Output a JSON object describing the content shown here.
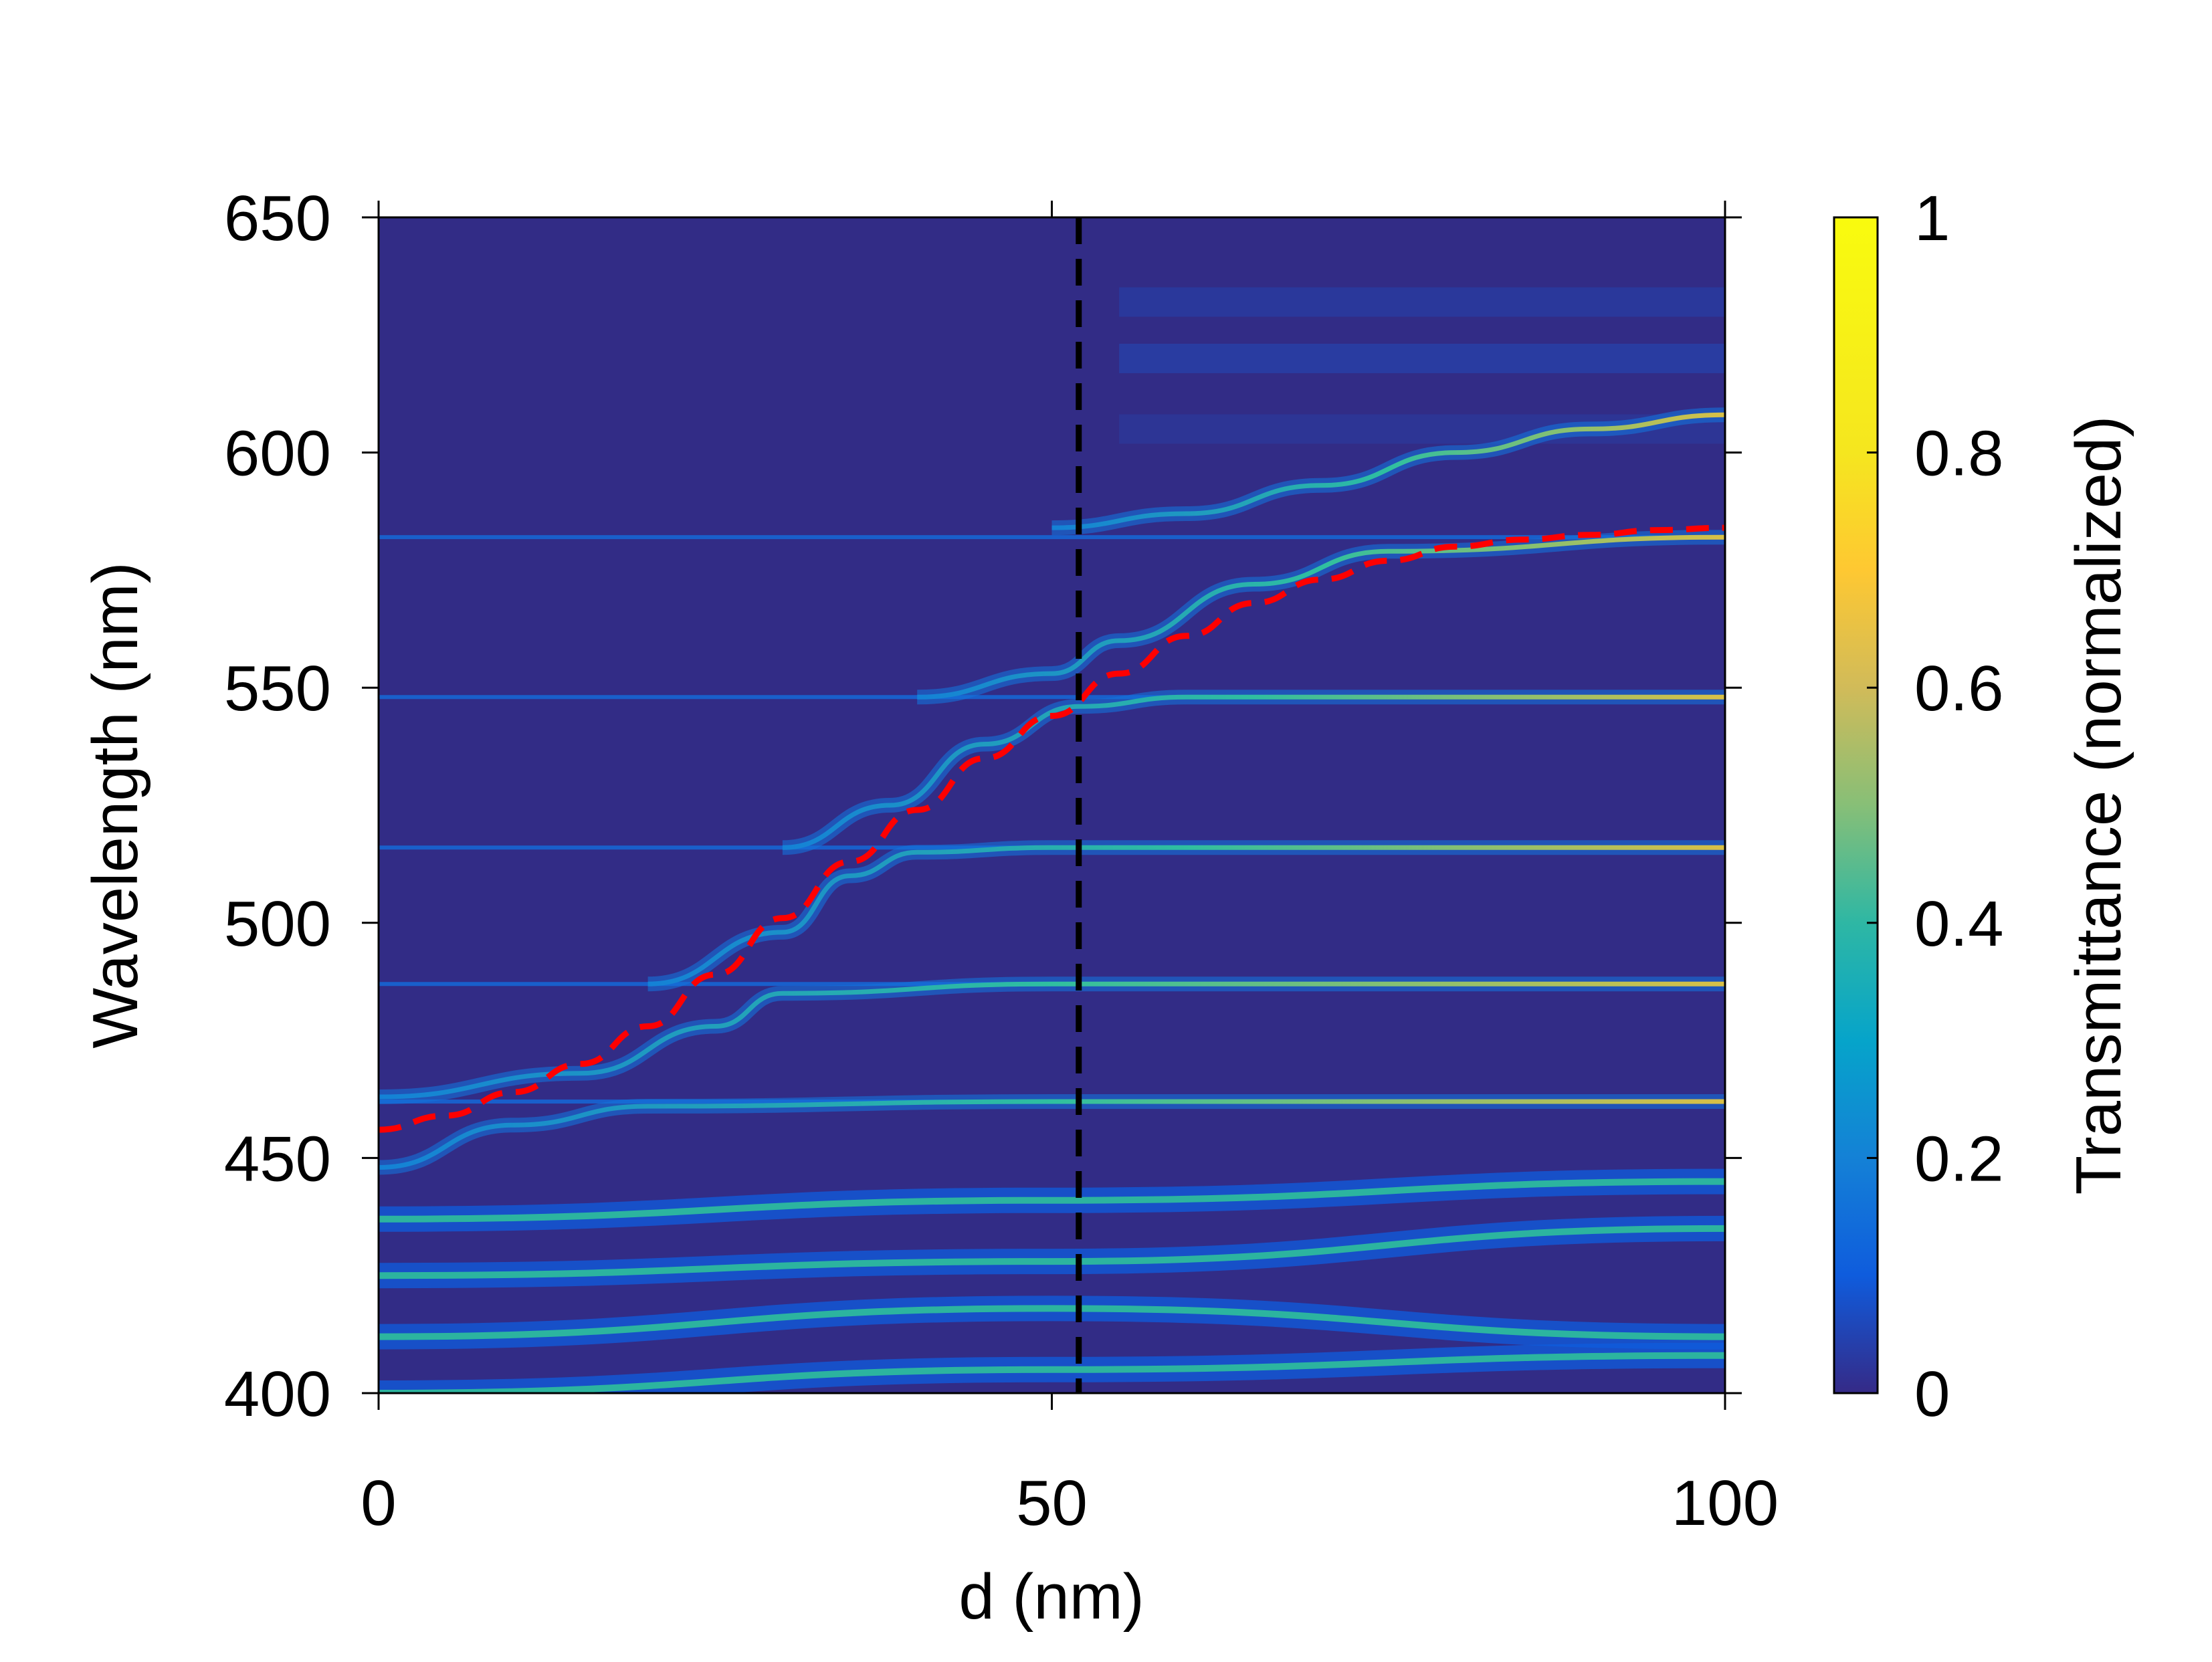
{
  "chart_data": {
    "type": "heatmap",
    "title": "",
    "xlabel": "d (nm)",
    "ylabel": "Wavelength (nm)",
    "xlim": [
      0,
      100
    ],
    "ylim": [
      400,
      650
    ],
    "xticks": [
      0,
      50,
      100
    ],
    "yticks": [
      400,
      450,
      500,
      550,
      600,
      650
    ],
    "colorbar": {
      "label": "Transmittance (normalized)",
      "range": [
        0,
        1
      ],
      "ticks": [
        0,
        0.2,
        0.4,
        0.6,
        0.8,
        1
      ],
      "colormap": "parula"
    },
    "heatmap_description_values": {
      "background_transmittance": 0.05,
      "flat_modes_nm": [
        462,
        487,
        516,
        548,
        582
      ],
      "coupled_branches": [
        {
          "name": "",
          "points": [
            [
              0,
              448
            ],
            [
              10,
              457
            ],
            [
              20,
              461
            ],
            [
              50,
              462
            ],
            [
              100,
              462
            ]
          ]
        },
        {
          "name": "",
          "points": [
            [
              0,
              463
            ],
            [
              15,
              468
            ],
            [
              25,
              478
            ],
            [
              30,
              485
            ],
            [
              50,
              487
            ],
            [
              100,
              487
            ]
          ]
        },
        {
          "name": "",
          "points": [
            [
              20,
              487
            ],
            [
              30,
              498
            ],
            [
              35,
              510
            ],
            [
              40,
              515
            ],
            [
              50,
              516
            ],
            [
              100,
              516
            ]
          ]
        },
        {
          "name": "",
          "points": [
            [
              30,
              516
            ],
            [
              38,
              525
            ],
            [
              45,
              538
            ],
            [
              52,
              546
            ],
            [
              60,
              548
            ],
            [
              100,
              548
            ]
          ]
        },
        {
          "name": "",
          "points": [
            [
              40,
              548
            ],
            [
              50,
              553
            ],
            [
              55,
              560
            ],
            [
              65,
              572
            ],
            [
              75,
              579
            ],
            [
              100,
              582
            ]
          ]
        },
        {
          "name": "",
          "points": [
            [
              50,
              584
            ],
            [
              60,
              587
            ],
            [
              70,
              593
            ],
            [
              80,
              600
            ],
            [
              90,
              605
            ],
            [
              100,
              608
            ]
          ]
        }
      ],
      "low_wavelength_bands": [
        {
          "points": [
            [
              0,
              400
            ],
            [
              50,
              405
            ],
            [
              100,
              408
            ]
          ]
        },
        {
          "points": [
            [
              0,
              412
            ],
            [
              50,
              418
            ],
            [
              100,
              412
            ]
          ]
        },
        {
          "points": [
            [
              0,
              425
            ],
            [
              50,
              428
            ],
            [
              100,
              435
            ]
          ]
        },
        {
          "points": [
            [
              0,
              437
            ],
            [
              50,
              441
            ],
            [
              100,
              445
            ]
          ]
        }
      ]
    },
    "series": [
      {
        "name": "",
        "style": "dashed",
        "color": "#ff0000",
        "x": [
          0,
          5,
          10,
          15,
          20,
          25,
          30,
          35,
          40,
          45,
          50,
          55,
          60,
          65,
          70,
          75,
          80,
          85,
          90,
          95,
          100
        ],
        "y": [
          456,
          459,
          464,
          470,
          478,
          489,
          501,
          513,
          524,
          535,
          544,
          553,
          561,
          568,
          573,
          577,
          580,
          581.5,
          582.5,
          583.5,
          584
        ]
      }
    ],
    "vertical_line": {
      "x": 52,
      "style": "dashed",
      "color": "#000000"
    },
    "grid": false,
    "legend": "none"
  }
}
